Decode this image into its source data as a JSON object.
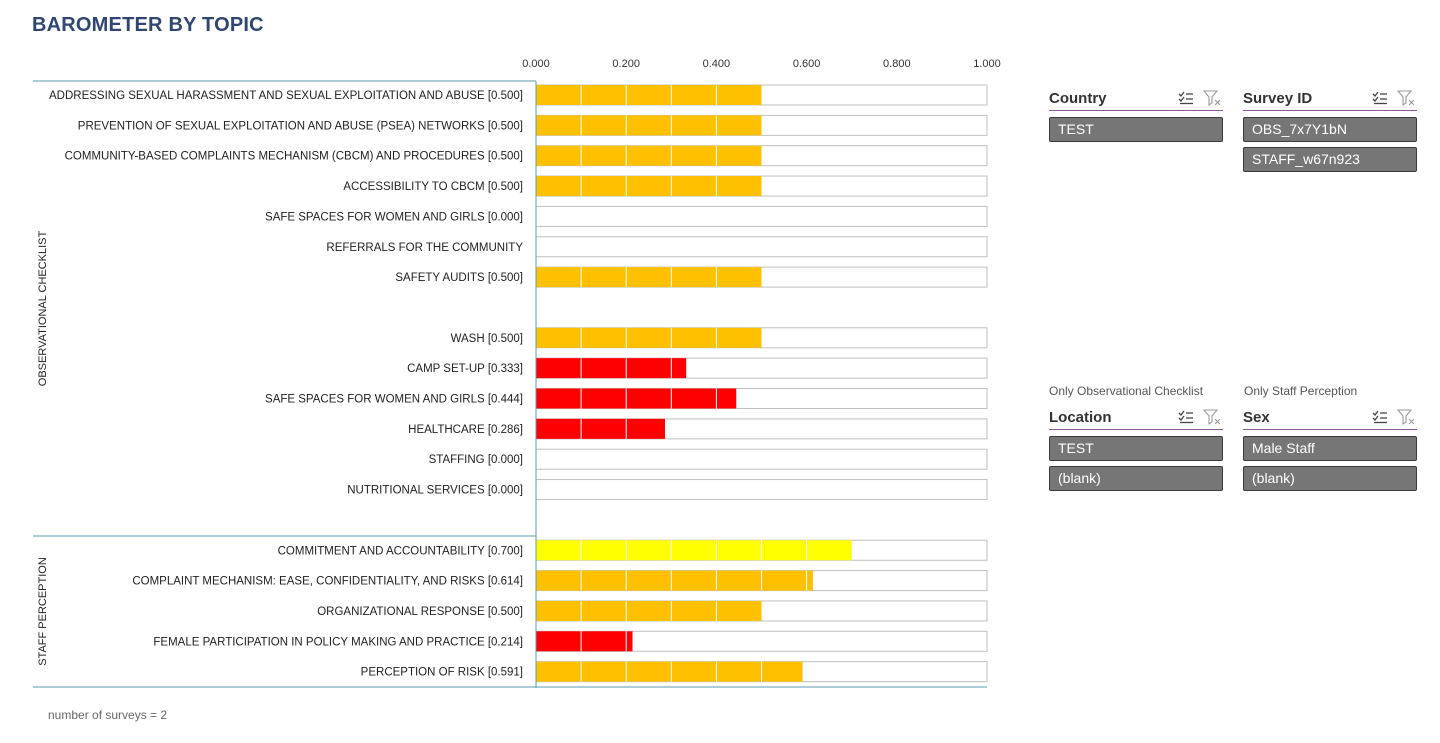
{
  "title": "BAROMETER BY TOPIC",
  "footer": "number of surveys = 2",
  "colors": {
    "gold": "#FFC000",
    "red": "#FF0000",
    "yellow": "#FFFF00",
    "axis": "#5B9BAE",
    "slicer_item": "#767676"
  },
  "chart_data": {
    "type": "bar",
    "orientation": "horizontal",
    "xlim": [
      0,
      1
    ],
    "x_ticks": [
      "0.000",
      "0.200",
      "0.400",
      "0.600",
      "0.800",
      "1.000"
    ],
    "groups": [
      {
        "name": "OBSERVATIONAL CHECKLIST",
        "start": 0,
        "end": 14
      },
      {
        "name": "STAFF PERCEPTION",
        "start": 15,
        "end": 19
      }
    ],
    "categories": [
      "ADDRESSING SEXUAL HARASSMENT AND SEXUAL EXPLOITATION AND ABUSE  [0.500]",
      "PREVENTION OF SEXUAL EXPLOITATION AND ABUSE (PSEA) NETWORKS [0.500]",
      "COMMUNITY-BASED COMPLAINTS MECHANISM (CBCM) AND PROCEDURES [0.500]",
      "ACCESSIBILITY TO CBCM [0.500]",
      "SAFE SPACES FOR WOMEN AND GIRLS [0.000]",
      "REFERRALS FOR THE COMMUNITY",
      "SAFETY AUDITS [0.500]",
      "",
      "WASH [0.500]",
      "CAMP SET-UP [0.333]",
      "SAFE SPACES FOR WOMEN AND GIRLS [0.444]",
      "HEALTHCARE [0.286]",
      "STAFFING [0.000]",
      "NUTRITIONAL SERVICES [0.000]",
      "",
      "COMMITMENT AND ACCOUNTABILITY [0.700]",
      "COMPLAINT MECHANISM: EASE, CONFIDENTIALITY, AND RISKS [0.614]",
      "ORGANIZATIONAL RESPONSE [0.500]",
      "FEMALE PARTICIPATION IN POLICY MAKING AND PRACTICE [0.214]",
      "PERCEPTION OF RISK [0.591]"
    ],
    "values": [
      0.5,
      0.5,
      0.5,
      0.5,
      0.0,
      null,
      0.5,
      null,
      0.5,
      0.333,
      0.444,
      0.286,
      0.0,
      0.0,
      null,
      0.7,
      0.614,
      0.5,
      0.214,
      0.591
    ],
    "bar_colors": [
      "gold",
      "gold",
      "gold",
      "gold",
      "gold",
      "gold",
      "gold",
      null,
      "gold",
      "red",
      "red",
      "red",
      "red",
      "red",
      null,
      "yellow",
      "gold",
      "gold",
      "red",
      "gold"
    ],
    "has_box": [
      true,
      true,
      true,
      true,
      true,
      true,
      true,
      false,
      true,
      true,
      true,
      true,
      true,
      true,
      false,
      true,
      true,
      true,
      true,
      true
    ]
  },
  "slicers": [
    {
      "id": "country",
      "caption": "",
      "title": "Country",
      "items": [
        "TEST"
      ]
    },
    {
      "id": "survey",
      "caption": "",
      "title": "Survey ID",
      "items": [
        "OBS_7x7Y1bN",
        "STAFF_w67n923"
      ]
    },
    {
      "id": "location",
      "caption": "Only Observational Checklist",
      "title": "Location",
      "items": [
        "TEST",
        "(blank)"
      ]
    },
    {
      "id": "sex",
      "caption": "Only Staff Perception",
      "title": "Sex",
      "items": [
        "Male Staff",
        "(blank)"
      ]
    }
  ]
}
